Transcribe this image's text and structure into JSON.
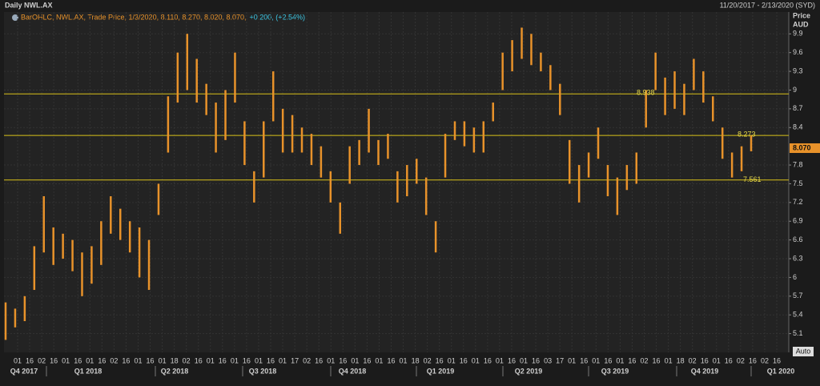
{
  "chart_data": {
    "type": "ohlc",
    "title": "Daily NWL.AX",
    "date_range": "11/20/2017 - 2/13/2020 (SYD)",
    "legend_text": "BarOHLC, NWL.AX, Trade Price, 1/3/2020, 8.110, 8.270, 8.020, 8.070,",
    "legend_change": "+0.200, (+2.54%)",
    "y_label": [
      "Price",
      "AUD"
    ],
    "auto_label": "Auto",
    "color": "#e8922a",
    "high": [
      5.6,
      5.5,
      5.7,
      6.5,
      7.3,
      6.8,
      6.7,
      6.6,
      6.4,
      6.5,
      6.9,
      7.3,
      7.1,
      6.9,
      6.8,
      6.6,
      7.5,
      8.9,
      9.6,
      9.9,
      9.5,
      9.1,
      8.8,
      9.0,
      9.6,
      8.5,
      7.7,
      8.5,
      9.3,
      8.7,
      8.6,
      8.4,
      8.3,
      8.1,
      7.7,
      7.2,
      8.1,
      8.2,
      8.7,
      8.2,
      8.3,
      7.7,
      7.8,
      7.9,
      7.6,
      6.9,
      8.3,
      8.5,
      8.5,
      8.4,
      8.5,
      8.8,
      9.6,
      9.8,
      10.0,
      9.9,
      9.6,
      9.4,
      9.1,
      8.2,
      7.8,
      8.0,
      8.4,
      7.8,
      7.6,
      7.8,
      8.0,
      9.0,
      9.6,
      9.2,
      9.3,
      9.1,
      9.5,
      9.3,
      8.9,
      8.4,
      8.0,
      8.1,
      8.27
    ],
    "low": [
      5.0,
      5.2,
      5.3,
      5.8,
      6.4,
      6.2,
      6.3,
      6.1,
      5.7,
      5.9,
      6.2,
      6.7,
      6.6,
      6.4,
      6.0,
      5.8,
      7.0,
      8.0,
      8.8,
      9.0,
      8.8,
      8.6,
      8.0,
      8.2,
      8.8,
      7.8,
      7.2,
      7.6,
      8.5,
      8.0,
      8.0,
      8.0,
      7.8,
      7.6,
      7.2,
      6.7,
      7.5,
      7.8,
      8.0,
      7.8,
      7.9,
      7.2,
      7.3,
      7.5,
      7.0,
      6.4,
      7.6,
      8.2,
      8.1,
      8.0,
      8.0,
      8.5,
      9.0,
      9.3,
      9.5,
      9.4,
      9.3,
      9.0,
      8.6,
      7.5,
      7.2,
      7.6,
      7.9,
      7.3,
      7.0,
      7.4,
      7.5,
      8.4,
      9.0,
      8.6,
      8.7,
      8.6,
      9.0,
      8.8,
      8.5,
      7.9,
      7.6,
      7.7,
      8.02
    ],
    "ylim": [
      4.8,
      10.25
    ],
    "yticks": [
      5.1,
      5.4,
      5.7,
      6,
      6.3,
      6.6,
      6.9,
      7.2,
      7.5,
      7.8,
      8.4,
      8.7,
      9,
      9.3,
      9.6,
      9.9
    ],
    "levels": [
      8.938,
      8.273,
      7.561
    ],
    "last_price": {
      "value": 8.07,
      "label": "8.070"
    },
    "date_ticks": [
      "01",
      "16",
      "02",
      "16",
      "01",
      "16",
      "01",
      "16",
      "02",
      "16",
      "01",
      "16",
      "01",
      "18",
      "02",
      "16",
      "01",
      "16",
      "01",
      "16",
      "01",
      "16",
      "01",
      "17",
      "02",
      "16",
      "01",
      "16",
      "01",
      "16",
      "01",
      "16",
      "01",
      "18",
      "02",
      "16",
      "01",
      "16",
      "01",
      "16",
      "01",
      "16",
      "01",
      "16",
      "03",
      "17",
      "01",
      "16",
      "01",
      "16",
      "01",
      "16",
      "02",
      "16",
      "01",
      "18",
      "02",
      "16",
      "01",
      "16",
      "02",
      "16",
      "02",
      "16"
    ],
    "quarters": [
      "Q4 2017",
      "Q1 2018",
      "Q2 2018",
      "Q3 2018",
      "Q4 2018",
      "Q1 2019",
      "Q2 2019",
      "Q3 2019",
      "Q4 2019",
      "Q1 2020"
    ],
    "grid": true
  }
}
